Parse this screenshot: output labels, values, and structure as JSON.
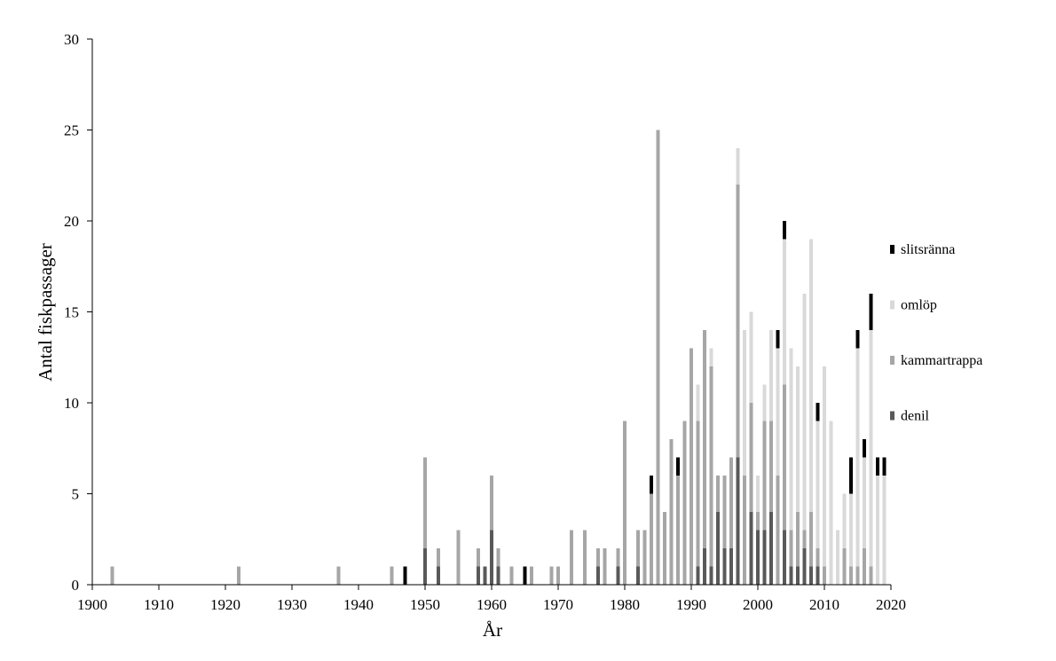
{
  "chart_data": {
    "type": "bar",
    "stacked": true,
    "title": "",
    "xlabel": "År",
    "ylabel": "Antal fiskpassager",
    "xlim": [
      1900,
      2020
    ],
    "ylim": [
      0,
      30
    ],
    "xticks": [
      1900,
      1910,
      1920,
      1930,
      1940,
      1950,
      1960,
      1970,
      1980,
      1990,
      2000,
      2010,
      2020
    ],
    "yticks": [
      0,
      5,
      10,
      15,
      20,
      25,
      30
    ],
    "grid": false,
    "legend_position": "right",
    "legend_order": [
      "slitsränna",
      "omlöp",
      "kammartrappa",
      "denil"
    ],
    "colors": {
      "denil": "#595959",
      "kammartrappa": "#a6a6a6",
      "omlöp": "#d9d9d9",
      "slitsränna": "#000000",
      "axis": "#000000"
    },
    "series": [
      {
        "name": "denil",
        "points": [
          [
            1950,
            2
          ],
          [
            1952,
            1
          ],
          [
            1958,
            1
          ],
          [
            1959,
            1
          ],
          [
            1960,
            3
          ],
          [
            1961,
            1
          ],
          [
            1976,
            1
          ],
          [
            1979,
            1
          ],
          [
            1982,
            1
          ],
          [
            1991,
            1
          ],
          [
            1992,
            2
          ],
          [
            1993,
            1
          ],
          [
            1994,
            4
          ],
          [
            1995,
            2
          ],
          [
            1996,
            2
          ],
          [
            1997,
            7
          ],
          [
            1999,
            4
          ],
          [
            2000,
            3
          ],
          [
            2001,
            3
          ],
          [
            2002,
            4
          ],
          [
            2004,
            3
          ],
          [
            2005,
            1
          ],
          [
            2006,
            1
          ],
          [
            2007,
            2
          ],
          [
            2008,
            1
          ],
          [
            2009,
            1
          ]
        ]
      },
      {
        "name": "kammartrappa",
        "points": [
          [
            1903,
            1
          ],
          [
            1922,
            1
          ],
          [
            1937,
            1
          ],
          [
            1945,
            1
          ],
          [
            1950,
            5
          ],
          [
            1952,
            1
          ],
          [
            1955,
            3
          ],
          [
            1958,
            1
          ],
          [
            1960,
            3
          ],
          [
            1961,
            1
          ],
          [
            1963,
            1
          ],
          [
            1966,
            1
          ],
          [
            1969,
            1
          ],
          [
            1970,
            1
          ],
          [
            1972,
            3
          ],
          [
            1974,
            3
          ],
          [
            1976,
            1
          ],
          [
            1977,
            2
          ],
          [
            1979,
            1
          ],
          [
            1980,
            9
          ],
          [
            1982,
            2
          ],
          [
            1983,
            3
          ],
          [
            1984,
            5
          ],
          [
            1985,
            25
          ],
          [
            1986,
            4
          ],
          [
            1987,
            8
          ],
          [
            1988,
            6
          ],
          [
            1989,
            9
          ],
          [
            1990,
            13
          ],
          [
            1991,
            8
          ],
          [
            1992,
            12
          ],
          [
            1993,
            11
          ],
          [
            1994,
            2
          ],
          [
            1995,
            4
          ],
          [
            1996,
            5
          ],
          [
            1997,
            15
          ],
          [
            1998,
            6
          ],
          [
            1999,
            6
          ],
          [
            2000,
            1
          ],
          [
            2001,
            6
          ],
          [
            2002,
            5
          ],
          [
            2003,
            6
          ],
          [
            2004,
            8
          ],
          [
            2005,
            2
          ],
          [
            2006,
            3
          ],
          [
            2007,
            1
          ],
          [
            2008,
            3
          ],
          [
            2009,
            1
          ],
          [
            2010,
            1
          ],
          [
            2013,
            2
          ],
          [
            2014,
            1
          ],
          [
            2015,
            1
          ],
          [
            2016,
            2
          ],
          [
            2017,
            1
          ]
        ]
      },
      {
        "name": "omlöp",
        "points": [
          [
            1990,
            0
          ],
          [
            1991,
            2
          ],
          [
            1993,
            1
          ],
          [
            1996,
            0
          ],
          [
            1997,
            2
          ],
          [
            1998,
            8
          ],
          [
            1999,
            5
          ],
          [
            2000,
            2
          ],
          [
            2001,
            2
          ],
          [
            2002,
            5
          ],
          [
            2003,
            7
          ],
          [
            2004,
            8
          ],
          [
            2005,
            10
          ],
          [
            2006,
            8
          ],
          [
            2007,
            13
          ],
          [
            2008,
            15
          ],
          [
            2009,
            7
          ],
          [
            2010,
            11
          ],
          [
            2011,
            9
          ],
          [
            2012,
            3
          ],
          [
            2013,
            3
          ],
          [
            2014,
            4
          ],
          [
            2015,
            12
          ],
          [
            2016,
            5
          ],
          [
            2017,
            13
          ],
          [
            2018,
            6
          ],
          [
            2019,
            6
          ]
        ]
      },
      {
        "name": "slitsränna",
        "points": [
          [
            1947,
            1
          ],
          [
            1965,
            1
          ],
          [
            1984,
            1
          ],
          [
            1988,
            1
          ],
          [
            2003,
            1
          ],
          [
            2004,
            1
          ],
          [
            2009,
            1
          ],
          [
            2014,
            2
          ],
          [
            2015,
            1
          ],
          [
            2016,
            1
          ],
          [
            2017,
            2
          ],
          [
            2018,
            1
          ],
          [
            2019,
            1
          ]
        ]
      }
    ]
  }
}
